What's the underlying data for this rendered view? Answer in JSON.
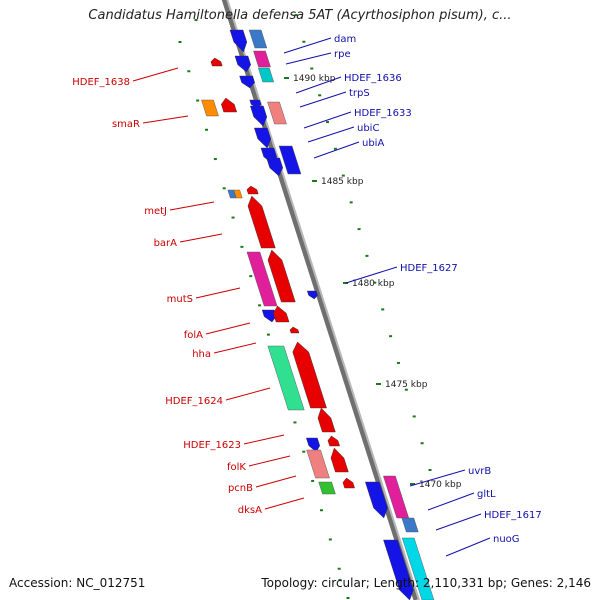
{
  "title": "Candidatus Hamiltonella defensa 5AT (Acyrthosiphon pisum), c...",
  "footer": {
    "accession": "Accession: NC_012751",
    "stats": "Topology: circular; Length: 2,110,331 bp; Genes: 2,146"
  },
  "colors": {
    "backbone": "#808080",
    "tick": "#1a7a1a",
    "label_left": "#cc0000",
    "label_right": "#1010aa"
  },
  "scale_labels": [
    "1490 kbp",
    "1485 kbp",
    "1480 kbp",
    "1475 kbp",
    "1470 kbp"
  ],
  "labels_left": [
    "HDEF_1638",
    "smaR",
    "metJ",
    "barA",
    "mutS",
    "folA",
    "hha",
    "HDEF_1624",
    "HDEF_1623",
    "folK",
    "pcnB",
    "dksA"
  ],
  "labels_right": [
    "dam",
    "rpe",
    "HDEF_1636",
    "trpS",
    "HDEF_1633",
    "ubiC",
    "ubiA",
    "HDEF_1627",
    "uvrB",
    "gltL",
    "HDEF_1617",
    "nuoG"
  ]
}
